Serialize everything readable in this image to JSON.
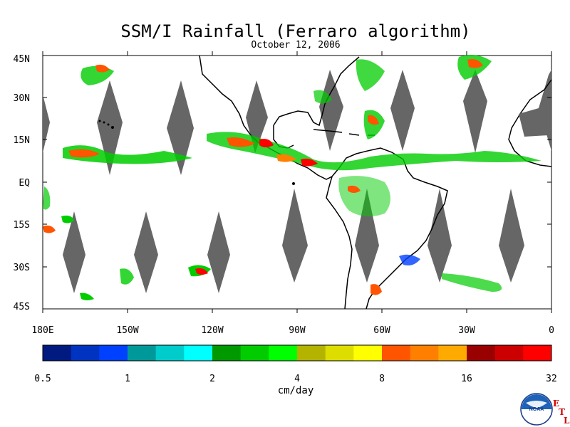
{
  "title": "SSM/I Rainfall (Ferraro algorithm)",
  "date": "October 12, 2006",
  "lat_labels": [
    "45N",
    "30N",
    "15N",
    "EQ",
    "15S",
    "30S",
    "45S"
  ],
  "lon_labels": [
    "180E",
    "150W",
    "120W",
    "90W",
    "60W",
    "30W",
    "0"
  ],
  "colorbar": {
    "units": "cm/day",
    "tick_labels": [
      "0.5",
      "1",
      "2",
      "4",
      "8",
      "16",
      "32"
    ],
    "colors": [
      "#001a80",
      "#0033bf",
      "#0040ff",
      "#009999",
      "#00cccc",
      "#00ffff",
      "#009900",
      "#00cc00",
      "#00ff00",
      "#b3b300",
      "#dddd00",
      "#ffff00",
      "#ff5500",
      "#ff8000",
      "#ffaa00",
      "#990000",
      "#cc0000",
      "#ff0000"
    ]
  },
  "logo": {
    "text": "NOAA",
    "lab_letters": [
      "E",
      "T",
      "L"
    ]
  },
  "colors": {
    "swath_gap": "#666666",
    "land_outline": "#000000"
  }
}
